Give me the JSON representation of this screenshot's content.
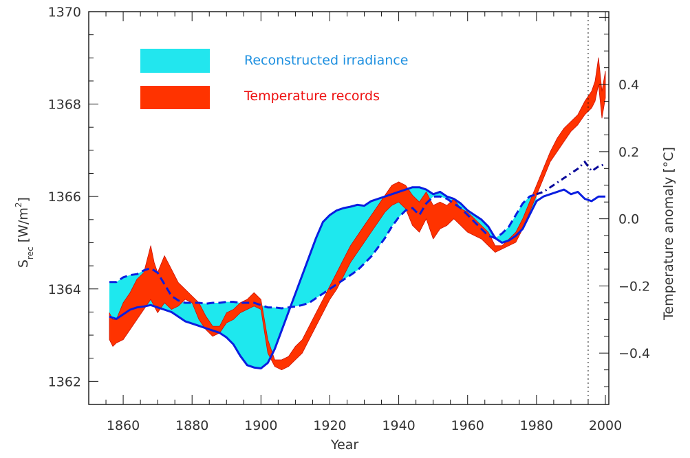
{
  "chart_data": {
    "type": "area",
    "title": "",
    "xlabel": "Year",
    "ylabel_left": "S",
    "ylabel_left_sub": "rec",
    "ylabel_left_unit": "[W/m",
    "ylabel_left_unit_sup": "2",
    "ylabel_left_unit_close": "]",
    "ylabel_right": "Temperature anomaly [°C]",
    "xlim": [
      1850,
      2001
    ],
    "ylim_left": [
      1361.5,
      1370
    ],
    "ylim_right": [
      -0.553,
      0.617
    ],
    "grid": false,
    "legend_position": "top-left",
    "x_ticks": [
      1860,
      1880,
      1900,
      1920,
      1940,
      1960,
      1980,
      2000
    ],
    "x_tick_labels": [
      "1860",
      "1880",
      "1900",
      "1920",
      "1940",
      "1960",
      "1980",
      "2000"
    ],
    "y_left_ticks": [
      1362,
      1364,
      1366,
      1368,
      1370
    ],
    "y_left_tick_labels": [
      "1362",
      "1364",
      "1366",
      "1368",
      "1370"
    ],
    "y_right_ticks": [
      -0.4,
      -0.2,
      0.0,
      0.2,
      0.4
    ],
    "y_right_tick_labels": [
      "−0.4",
      "−0.2",
      "0.0",
      "0.2",
      "0.4"
    ],
    "vertical_marker_year": 1995,
    "legend": [
      {
        "label": "Reconstructed irradiance",
        "color": "#00e5ee",
        "text_color": "#1e90e0"
      },
      {
        "label": "Temperature records",
        "color": "#ff2a00",
        "text_color": "#ee1111"
      }
    ],
    "colors": {
      "irradiance_fill": "#1ee8ee",
      "irradiance_line": "#0a1ee0",
      "irradiance_dashdot": "#0a0a9a",
      "temperature_fill": "#ff3300",
      "temperature_edge": "#cc1100",
      "axis": "#111111"
    },
    "series": [
      {
        "name": "Reconstructed irradiance (solid bound)",
        "axis": "left",
        "style": "solid",
        "x": [
          1856,
          1858,
          1860,
          1862,
          1864,
          1866,
          1868,
          1870,
          1872,
          1874,
          1876,
          1878,
          1880,
          1882,
          1884,
          1886,
          1888,
          1890,
          1892,
          1894,
          1896,
          1898,
          1900,
          1902,
          1904,
          1906,
          1908,
          1910,
          1912,
          1914,
          1916,
          1918,
          1920,
          1922,
          1924,
          1926,
          1928,
          1930,
          1932,
          1934,
          1936,
          1938,
          1940,
          1942,
          1944,
          1946,
          1948,
          1950,
          1952,
          1954,
          1956,
          1958,
          1960,
          1962,
          1964,
          1966,
          1968,
          1970,
          1972,
          1974,
          1976,
          1978,
          1980,
          1982,
          1984,
          1986,
          1988,
          1990,
          1992,
          1994,
          1996,
          1998,
          2000
        ],
        "y": [
          1363.4,
          1363.35,
          1363.45,
          1363.55,
          1363.6,
          1363.62,
          1363.65,
          1363.6,
          1363.55,
          1363.5,
          1363.4,
          1363.3,
          1363.25,
          1363.2,
          1363.15,
          1363.1,
          1363.05,
          1362.95,
          1362.8,
          1362.55,
          1362.35,
          1362.3,
          1362.28,
          1362.4,
          1362.7,
          1363.1,
          1363.5,
          1363.9,
          1364.3,
          1364.7,
          1365.1,
          1365.45,
          1365.6,
          1365.7,
          1365.75,
          1365.78,
          1365.82,
          1365.8,
          1365.9,
          1365.95,
          1366.0,
          1366.05,
          1366.1,
          1366.15,
          1366.2,
          1366.2,
          1366.15,
          1366.05,
          1366.1,
          1366.0,
          1365.95,
          1365.85,
          1365.7,
          1365.6,
          1365.5,
          1365.35,
          1365.1,
          1365.0,
          1365.05,
          1365.15,
          1365.3,
          1365.6,
          1365.9,
          1366.0,
          1366.05,
          1366.1,
          1366.15,
          1366.05,
          1366.1,
          1365.95,
          1365.9,
          1366.0,
          1366.0
        ]
      },
      {
        "name": "Reconstructed irradiance (dashed bound)",
        "axis": "left",
        "style": "dashed",
        "x": [
          1856,
          1858,
          1860,
          1862,
          1864,
          1866,
          1868,
          1870,
          1872,
          1874,
          1876,
          1878,
          1880,
          1882,
          1884,
          1886,
          1888,
          1890,
          1892,
          1894,
          1896,
          1898,
          1900,
          1902,
          1904,
          1906,
          1908,
          1910,
          1912,
          1914,
          1916,
          1918,
          1920,
          1922,
          1924,
          1926,
          1928,
          1930,
          1932,
          1934,
          1936,
          1938,
          1940,
          1942,
          1944,
          1946,
          1948,
          1950,
          1952,
          1954,
          1956,
          1958,
          1960,
          1962,
          1964,
          1966,
          1968,
          1970,
          1972,
          1974,
          1976,
          1978,
          1980
        ],
        "y": [
          1364.15,
          1364.15,
          1364.25,
          1364.3,
          1364.32,
          1364.4,
          1364.45,
          1364.35,
          1364.1,
          1363.85,
          1363.75,
          1363.7,
          1363.7,
          1363.7,
          1363.68,
          1363.7,
          1363.7,
          1363.72,
          1363.72,
          1363.7,
          1363.7,
          1363.7,
          1363.65,
          1363.6,
          1363.6,
          1363.58,
          1363.6,
          1363.62,
          1363.65,
          1363.7,
          1363.8,
          1363.9,
          1364.0,
          1364.1,
          1364.2,
          1364.3,
          1364.4,
          1364.55,
          1364.7,
          1364.9,
          1365.1,
          1365.35,
          1365.55,
          1365.7,
          1365.75,
          1365.6,
          1365.85,
          1366.0,
          1366.0,
          1365.95,
          1365.85,
          1365.75,
          1365.6,
          1365.45,
          1365.3,
          1365.15,
          1365.1,
          1365.2,
          1365.35,
          1365.6,
          1365.85,
          1366.0,
          1366.05
        ]
      },
      {
        "name": "Reconstructed irradiance (dash-dot extension)",
        "axis": "left",
        "style": "dashdot",
        "x": [
          1980,
          1982,
          1984,
          1986,
          1988,
          1990,
          1992,
          1994,
          1996,
          1998,
          2000
        ],
        "y": [
          1366.05,
          1366.1,
          1366.2,
          1366.3,
          1366.4,
          1366.5,
          1366.6,
          1366.75,
          1366.55,
          1366.65,
          1366.7
        ]
      },
      {
        "name": "Temperature records (upper)",
        "axis": "right",
        "x": [
          1856,
          1857,
          1858,
          1860,
          1862,
          1864,
          1866,
          1868,
          1869,
          1870,
          1872,
          1874,
          1876,
          1878,
          1880,
          1882,
          1884,
          1886,
          1888,
          1890,
          1892,
          1894,
          1896,
          1898,
          1900,
          1902,
          1904,
          1906,
          1908,
          1910,
          1912,
          1914,
          1916,
          1918,
          1920,
          1922,
          1924,
          1926,
          1928,
          1930,
          1932,
          1934,
          1936,
          1938,
          1940,
          1942,
          1944,
          1946,
          1948,
          1950,
          1952,
          1954,
          1956,
          1958,
          1960,
          1962,
          1964,
          1966,
          1968,
          1970,
          1972,
          1974,
          1976,
          1978,
          1980,
          1982,
          1984,
          1986,
          1988,
          1990,
          1992,
          1994,
          1996,
          1997,
          1998,
          1999,
          2000
        ],
        "y": [
          -0.28,
          -0.3,
          -0.3,
          -0.25,
          -0.22,
          -0.18,
          -0.16,
          -0.08,
          -0.13,
          -0.16,
          -0.11,
          -0.15,
          -0.19,
          -0.21,
          -0.23,
          -0.25,
          -0.29,
          -0.32,
          -0.32,
          -0.28,
          -0.27,
          -0.25,
          -0.24,
          -0.22,
          -0.24,
          -0.36,
          -0.42,
          -0.42,
          -0.41,
          -0.38,
          -0.36,
          -0.32,
          -0.28,
          -0.24,
          -0.2,
          -0.16,
          -0.12,
          -0.08,
          -0.05,
          -0.02,
          0.01,
          0.04,
          0.07,
          0.1,
          0.11,
          0.1,
          0.07,
          0.05,
          0.08,
          0.04,
          0.05,
          0.04,
          0.06,
          0.03,
          0.02,
          0.0,
          -0.02,
          -0.04,
          -0.08,
          -0.08,
          -0.06,
          -0.04,
          0.0,
          0.05,
          0.1,
          0.15,
          0.2,
          0.24,
          0.27,
          0.29,
          0.31,
          0.35,
          0.38,
          0.41,
          0.48,
          0.38,
          0.44
        ]
      },
      {
        "name": "Temperature records (lower)",
        "axis": "right",
        "x": [
          1856,
          1857,
          1858,
          1860,
          1862,
          1864,
          1866,
          1868,
          1869,
          1870,
          1872,
          1874,
          1876,
          1878,
          1880,
          1882,
          1884,
          1886,
          1888,
          1890,
          1892,
          1894,
          1896,
          1898,
          1900,
          1902,
          1904,
          1906,
          1908,
          1910,
          1912,
          1914,
          1916,
          1918,
          1920,
          1922,
          1924,
          1926,
          1928,
          1930,
          1932,
          1934,
          1936,
          1938,
          1940,
          1942,
          1944,
          1946,
          1948,
          1950,
          1952,
          1954,
          1956,
          1958,
          1960,
          1962,
          1964,
          1966,
          1968,
          1970,
          1972,
          1974,
          1976,
          1978,
          1980,
          1982,
          1984,
          1986,
          1988,
          1990,
          1992,
          1994,
          1996,
          1997,
          1998,
          1999,
          2000
        ],
        "y": [
          -0.36,
          -0.38,
          -0.37,
          -0.36,
          -0.33,
          -0.3,
          -0.27,
          -0.24,
          -0.26,
          -0.28,
          -0.25,
          -0.27,
          -0.26,
          -0.24,
          -0.25,
          -0.3,
          -0.33,
          -0.35,
          -0.34,
          -0.31,
          -0.3,
          -0.28,
          -0.27,
          -0.26,
          -0.27,
          -0.4,
          -0.44,
          -0.45,
          -0.44,
          -0.42,
          -0.4,
          -0.36,
          -0.32,
          -0.28,
          -0.24,
          -0.21,
          -0.17,
          -0.13,
          -0.1,
          -0.07,
          -0.04,
          -0.01,
          0.02,
          0.04,
          0.05,
          0.03,
          -0.02,
          -0.04,
          0.0,
          -0.06,
          -0.03,
          -0.02,
          0.0,
          -0.02,
          -0.04,
          -0.05,
          -0.06,
          -0.08,
          -0.1,
          -0.09,
          -0.08,
          -0.07,
          -0.03,
          0.02,
          0.07,
          0.12,
          0.17,
          0.2,
          0.23,
          0.26,
          0.28,
          0.31,
          0.33,
          0.35,
          0.4,
          0.3,
          0.36
        ]
      }
    ]
  }
}
